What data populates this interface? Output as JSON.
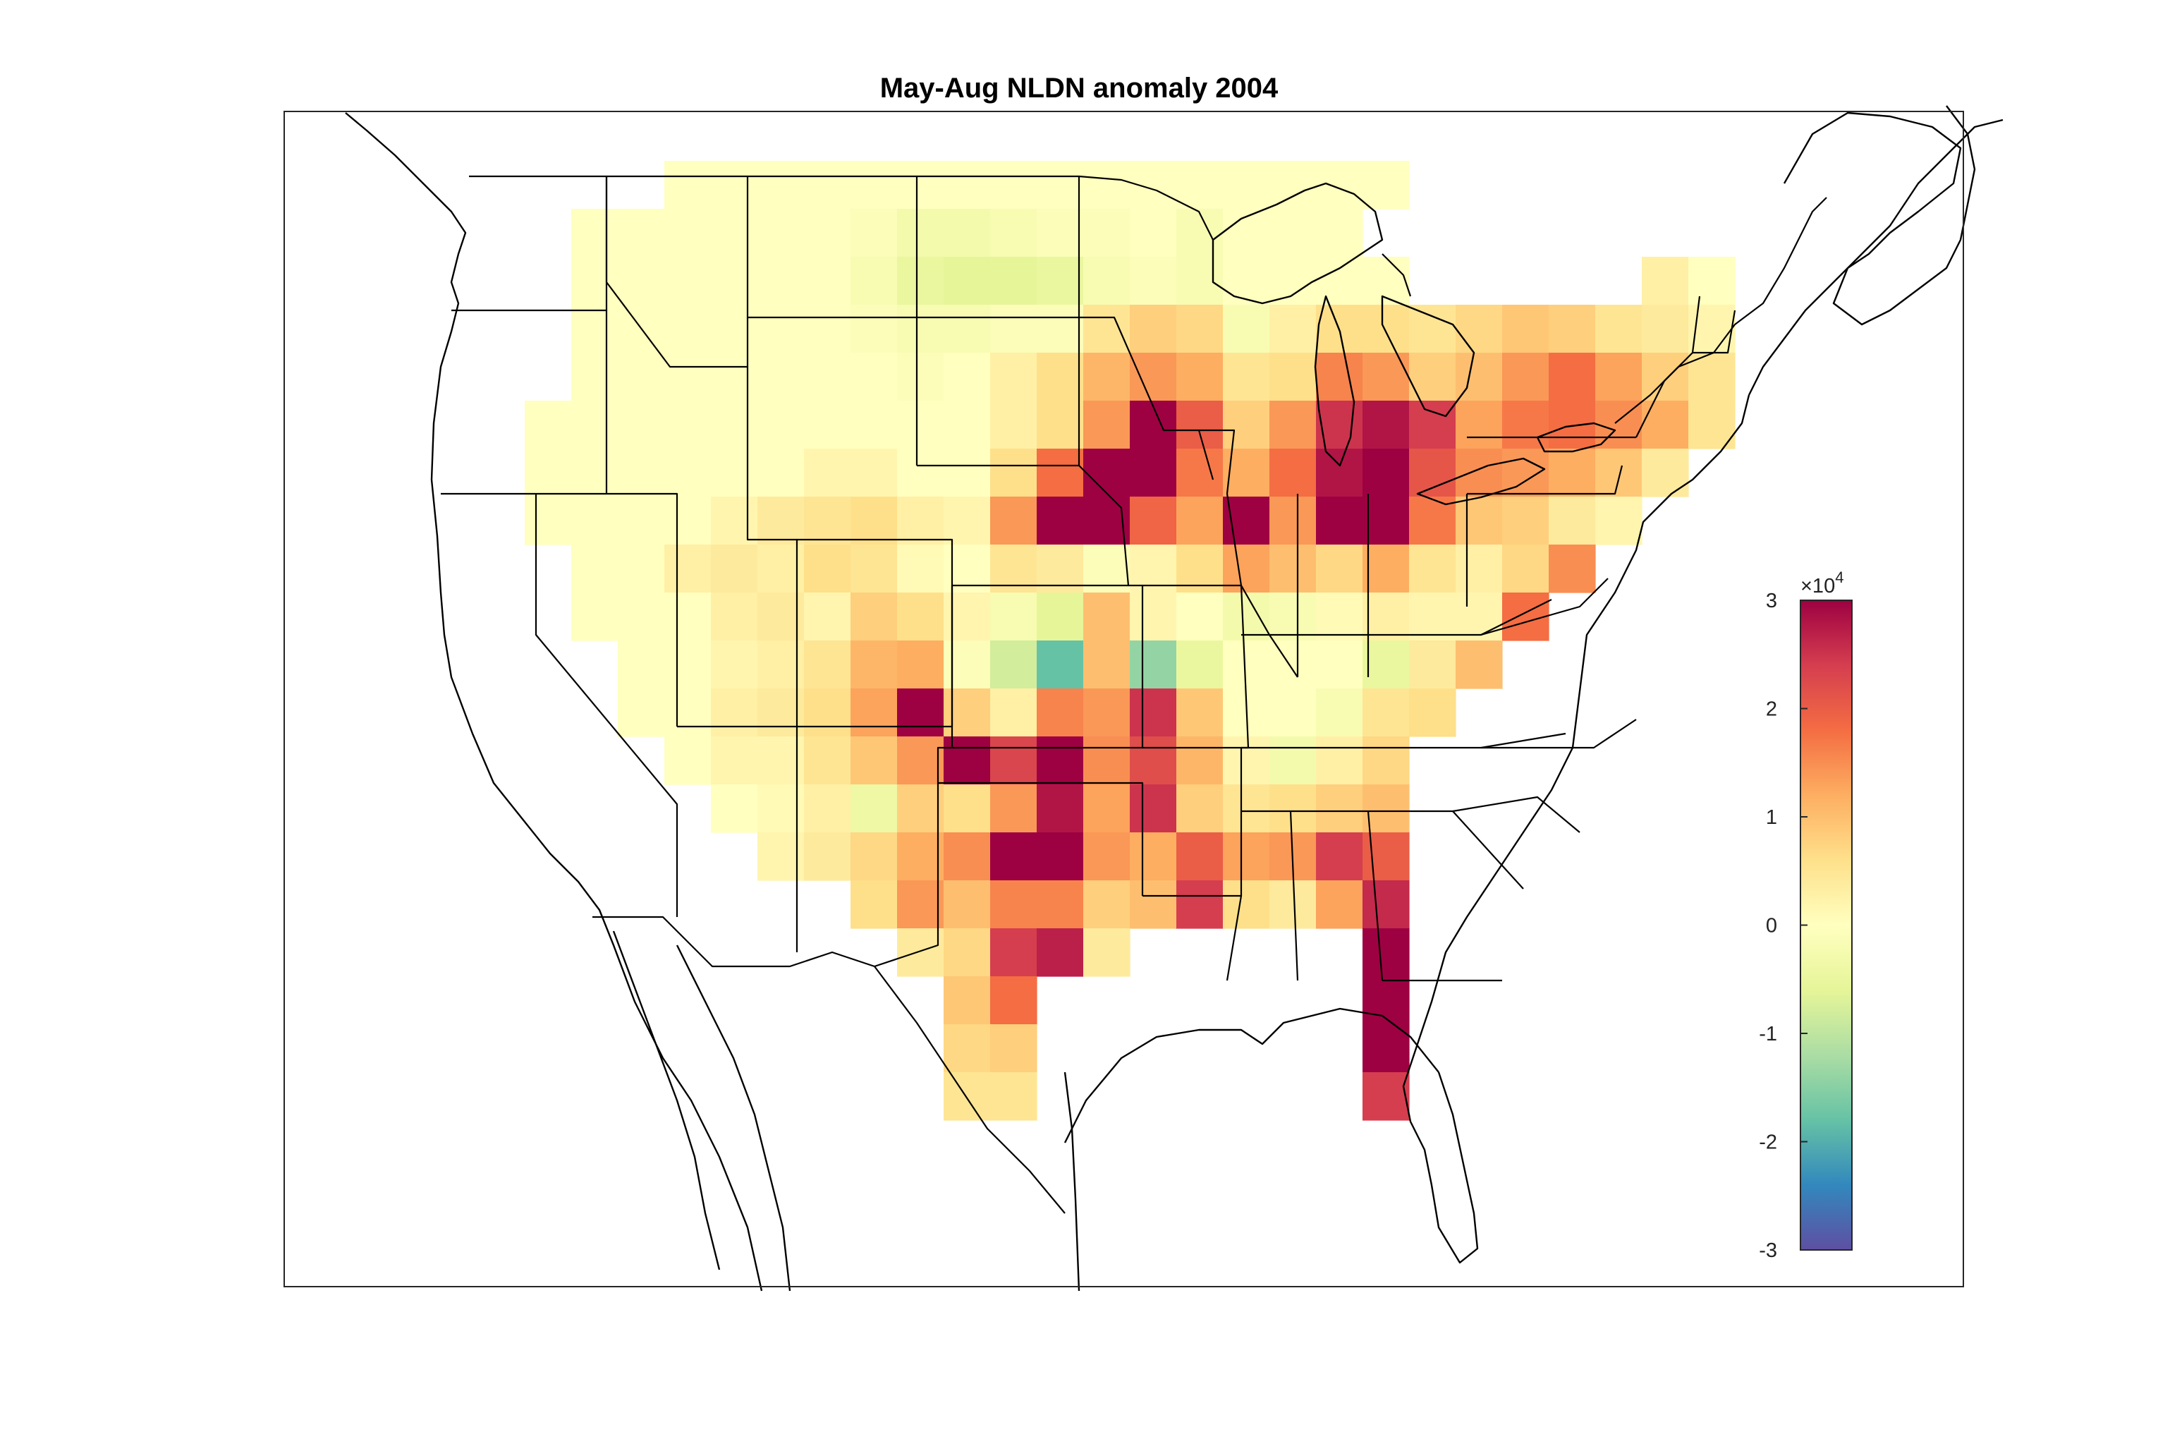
{
  "title": "May-Aug NLDN anomaly 2004",
  "colorbar": {
    "exponent_base": "×10",
    "exponent_power": "4",
    "ticks": [
      "3",
      "2",
      "1",
      "0",
      "-1",
      "-2",
      "-3"
    ],
    "range": [
      -3,
      3
    ],
    "colormap": "spectral",
    "colors_low_to_high": [
      "#5e4fa2",
      "#3288bd",
      "#66c2a5",
      "#abdda4",
      "#e6f598",
      "#ffffbf",
      "#fee08b",
      "#fdae61",
      "#f46d43",
      "#d53e4f",
      "#9e0142"
    ]
  },
  "chart_data": {
    "type": "heatmap",
    "title": "May-Aug NLDN anomaly 2004",
    "colorbar_range": [
      -3,
      3
    ],
    "colorbar_scale": "×10^4",
    "grid_columns": 29,
    "grid_rows": 24,
    "row_values": [
      [
        "",
        "",
        "",
        "",
        "",
        "",
        "",
        "",
        "",
        "",
        "",
        "",
        "",
        "",
        "",
        "",
        "",
        "",
        "",
        "",
        "",
        "",
        "",
        "",
        "",
        "",
        "",
        "",
        ""
      ],
      [
        "",
        "",
        "",
        "",
        "",
        "0",
        "0",
        "0",
        "0",
        "0",
        "0",
        "0",
        "0",
        "0",
        "0",
        "0",
        "0",
        "0",
        "0",
        "0",
        "0",
        "",
        "",
        "",
        "",
        "",
        "",
        "",
        ""
      ],
      [
        "",
        "",
        "",
        "0",
        "0",
        "0",
        "0",
        "0",
        "0",
        "-0.1",
        "-0.3",
        "-0.3",
        "-0.2",
        "-0.1",
        "-0.1",
        "0",
        "-0.2",
        "0",
        "0",
        "0",
        "",
        "",
        "",
        "",
        "",
        "",
        "",
        "",
        ""
      ],
      [
        "",
        "",
        "",
        "0",
        "0",
        "0",
        "0",
        "0",
        "0",
        "-0.2",
        "-0.5",
        "-0.6",
        "-0.6",
        "-0.5",
        "-0.2",
        "-0.1",
        "-0.2",
        "0",
        "0",
        "0",
        "0",
        "",
        "",
        "",
        "",
        "",
        "0.3",
        "0",
        ""
      ],
      [
        "",
        "",
        "",
        "0",
        "0",
        "0",
        "0",
        "0",
        "0",
        "-0.1",
        "-0.2",
        "-0.2",
        "-0.1",
        "-0.1",
        "0.5",
        "0.8",
        "0.7",
        "-0.2",
        "0.3",
        "0.6",
        "0.6",
        "0.5",
        "0.7",
        "0.9",
        "0.8",
        "0.5",
        "0.4",
        "0.2",
        ""
      ],
      [
        "",
        "",
        "",
        "0",
        "0",
        "0",
        "0",
        "0",
        "0",
        "0",
        "-0.1",
        "0",
        "0.3",
        "0.6",
        "1.1",
        "1.4",
        "1.2",
        "0.5",
        "0.6",
        "1.6",
        "1.4",
        "0.8",
        "1.0",
        "1.4",
        "1.8",
        "1.3",
        "0.8",
        "0.5",
        ""
      ],
      [
        "",
        "",
        "0",
        "0",
        "0",
        "0",
        "0",
        "0",
        "0",
        "0",
        "0",
        "0",
        "0.3",
        "0.6",
        "1.4",
        "3.0",
        "2.0",
        "0.8",
        "1.4",
        "2.5",
        "2.8",
        "2.4",
        "1.3",
        "1.7",
        "1.8",
        "1.5",
        "1.2",
        "0.5",
        ""
      ],
      [
        "",
        "",
        "0",
        "0",
        "0",
        "0",
        "0",
        "0",
        "0.2",
        "0.2",
        "0",
        "0",
        "0.6",
        "1.8",
        "3.0",
        "3.0",
        "1.7",
        "1.2",
        "1.8",
        "2.8",
        "3.0",
        "2.1",
        "1.5",
        "1.4",
        "1.2",
        "0.9",
        "0.4",
        "",
        ""
      ],
      [
        "",
        "",
        "0",
        "0",
        "0",
        "0",
        "0.2",
        "0.4",
        "0.5",
        "0.6",
        "0.3",
        "0.2",
        "1.4",
        "3.0",
        "3.0",
        "1.9",
        "1.3",
        "3.0",
        "1.4",
        "3.0",
        "3.0",
        "1.7",
        "0.9",
        "0.8",
        "0.4",
        "0.2",
        "",
        "",
        ""
      ],
      [
        "",
        "",
        "",
        "0",
        "0",
        "0.3",
        "0.4",
        "0.3",
        "0.6",
        "0.5",
        "0.1",
        "0",
        "0.5",
        "0.4",
        "-0.1",
        "0.2",
        "0.6",
        "1.3",
        "1.0",
        "0.7",
        "1.2",
        "0.5",
        "0.3",
        "0.7",
        "1.5",
        "",
        "",
        "",
        ""
      ],
      [
        "",
        "",
        "",
        "0",
        "0",
        "0",
        "0.3",
        "0.4",
        "0.2",
        "0.8",
        "0.6",
        "0.2",
        "-0.2",
        "-0.6",
        "1.0",
        "0.2",
        "0",
        "-0.3",
        "-0.2",
        "0.1",
        "0.3",
        "0.2",
        "0.2",
        "1.8",
        "",
        "",
        "",
        "",
        ""
      ],
      [
        "",
        "",
        "",
        "",
        "0",
        "0",
        "0.2",
        "0.3",
        "0.5",
        "1.1",
        "1.2",
        "-0.1",
        "-0.8",
        "-1.8",
        "1.0",
        "-1.4",
        "-0.5",
        "0",
        "0",
        "0",
        "-0.5",
        "0.4",
        "1.0",
        "",
        "",
        "",
        "",
        "",
        ""
      ],
      [
        "",
        "",
        "",
        "",
        "0",
        "0",
        "0.3",
        "0.4",
        "0.6",
        "1.3",
        "3.0",
        "0.8",
        "0.3",
        "1.6",
        "1.4",
        "2.5",
        "0.9",
        "0",
        "0",
        "-0.2",
        "0.5",
        "0.6",
        "",
        "",
        "",
        "",
        "",
        "",
        ""
      ],
      [
        "",
        "",
        "",
        "",
        "",
        "0",
        "0.2",
        "0.2",
        "0.5",
        "0.9",
        "1.4",
        "3.0",
        "2.3",
        "3.0",
        "1.5",
        "2.2",
        "1.1",
        "0.2",
        "-0.3",
        "0.3",
        "0.7",
        "",
        "",
        "",
        "",
        "",
        "",
        "",
        ""
      ],
      [
        "",
        "",
        "",
        "",
        "",
        "",
        "0",
        "0.1",
        "0.3",
        "-0.4",
        "0.8",
        "0.6",
        "1.4",
        "2.8",
        "1.3",
        "2.5",
        "0.8",
        "0.5",
        "0.6",
        "0.8",
        "1.0",
        "",
        "",
        "",
        "",
        "",
        "",
        "",
        ""
      ],
      [
        "",
        "",
        "",
        "",
        "",
        "",
        "",
        "0.2",
        "0.4",
        "0.7",
        "1.2",
        "1.5",
        "3.0",
        "3.0",
        "1.4",
        "1.2",
        "2.0",
        "1.3",
        "1.4",
        "2.4",
        "2.0",
        "",
        "",
        "",
        "",
        "",
        "",
        "",
        ""
      ],
      [
        "",
        "",
        "",
        "",
        "",
        "",
        "",
        "",
        "",
        "0.6",
        "1.4",
        "1.0",
        "1.6",
        "1.6",
        "0.8",
        "1.0",
        "2.4",
        "0.6",
        "0.4",
        "1.3",
        "2.6",
        "",
        "",
        "",
        "",
        "",
        "",
        "",
        ""
      ],
      [
        "",
        "",
        "",
        "",
        "",
        "",
        "",
        "",
        "",
        "",
        "0.4",
        "0.7",
        "2.4",
        "2.7",
        "0.4",
        "",
        "",
        "",
        "",
        "",
        "3.0",
        "",
        "",
        "",
        "",
        "",
        "",
        "",
        ""
      ],
      [
        "",
        "",
        "",
        "",
        "",
        "",
        "",
        "",
        "",
        "",
        "",
        "0.9",
        "1.8",
        "",
        "",
        "",
        "",
        "",
        "",
        "",
        "3.0",
        "",
        "",
        "",
        "",
        "",
        "",
        "",
        ""
      ],
      [
        "",
        "",
        "",
        "",
        "",
        "",
        "",
        "",
        "",
        "",
        "",
        "0.7",
        "0.8",
        "",
        "",
        "",
        "",
        "",
        "",
        "",
        "3.0",
        "",
        "",
        "",
        "",
        "",
        "",
        "",
        ""
      ],
      [
        "",
        "",
        "",
        "",
        "",
        "",
        "",
        "",
        "",
        "",
        "",
        "0.5",
        "0.5",
        "",
        "",
        "",
        "",
        "",
        "",
        "",
        "2.4",
        "",
        "",
        "",
        "",
        "",
        "",
        "",
        ""
      ],
      [
        "",
        "",
        "",
        "",
        "",
        "",
        "",
        "",
        "",
        "",
        "",
        "",
        "",
        "",
        "",
        "",
        "",
        "",
        "",
        "",
        "",
        "",
        "",
        "",
        "",
        "",
        "",
        "",
        ""
      ],
      [
        "",
        "",
        "",
        "",
        "",
        "",
        "",
        "",
        "",
        "",
        "",
        "",
        "",
        "",
        "",
        "",
        "",
        "",
        "",
        "",
        "",
        "",
        "",
        "",
        "",
        "",
        "",
        "",
        ""
      ],
      [
        "",
        "",
        "",
        "",
        "",
        "",
        "",
        "",
        "",
        "",
        "",
        "",
        "",
        "",
        "",
        "",
        "",
        "",
        "",
        "",
        "",
        "",
        "",
        "",
        "",
        "",
        "",
        "",
        ""
      ]
    ]
  }
}
